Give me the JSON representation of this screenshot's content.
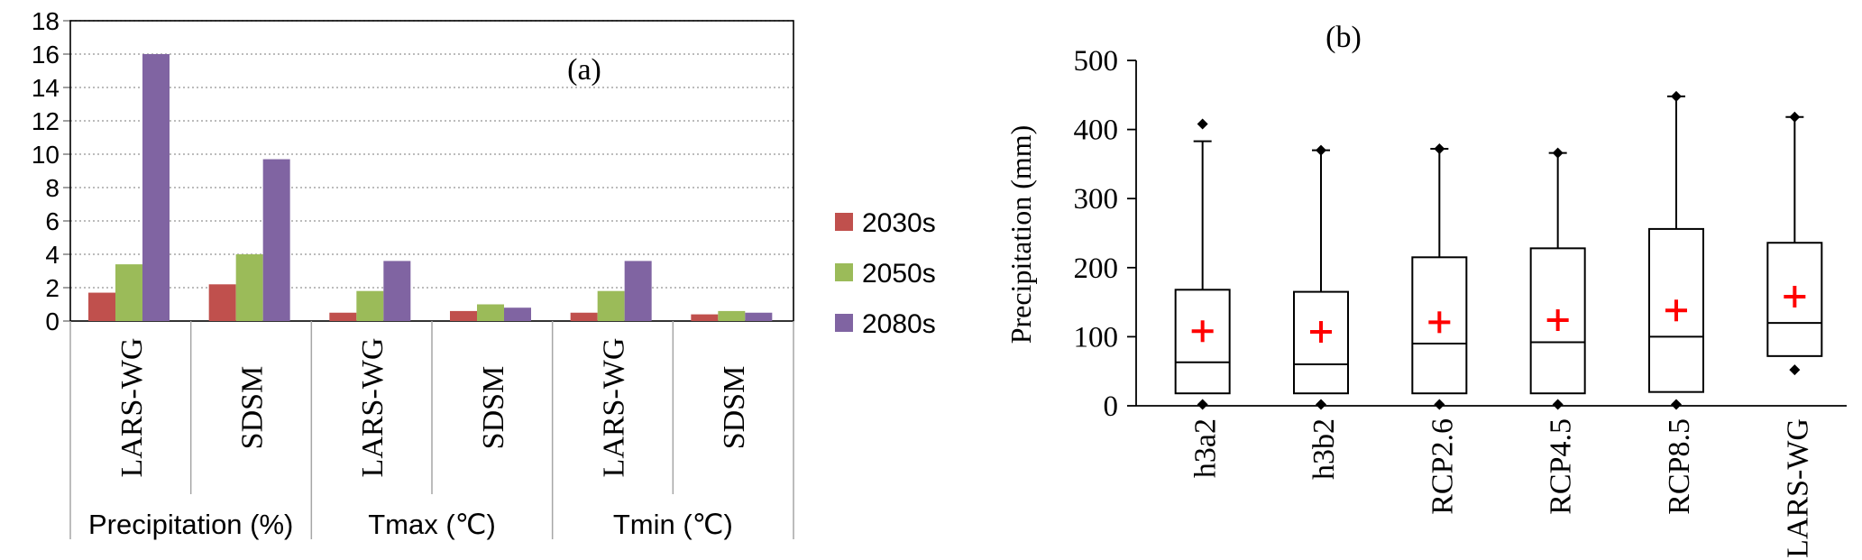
{
  "chart_data": [
    {
      "type": "bar",
      "panel_label": "(a)",
      "ylim": [
        0,
        18
      ],
      "yticks": [
        0,
        2,
        4,
        6,
        8,
        10,
        12,
        14,
        16,
        18
      ],
      "grid": true,
      "legend_position": "right",
      "groups": [
        {
          "label": "Precipitation (%)",
          "categories": [
            "LARS-WG",
            "SDSM"
          ]
        },
        {
          "label": "Tmax (℃)",
          "categories": [
            "LARS-WG",
            "SDSM"
          ]
        },
        {
          "label": "Tmin (℃)",
          "categories": [
            "LARS-WG",
            "SDSM"
          ]
        }
      ],
      "series": [
        {
          "name": "2030s",
          "color": "#c0504d",
          "values": [
            1.7,
            2.2,
            0.5,
            0.6,
            0.5,
            0.4
          ]
        },
        {
          "name": "2050s",
          "color": "#9bbb59",
          "values": [
            3.4,
            4.0,
            1.8,
            1.0,
            1.8,
            0.6
          ]
        },
        {
          "name": "2080s",
          "color": "#8064a2",
          "values": [
            16.0,
            9.7,
            3.6,
            0.8,
            3.6,
            0.5
          ]
        }
      ]
    },
    {
      "type": "box",
      "panel_label": "(b)",
      "ylabel": "Precipitation (mm)",
      "ylim": [
        0,
        500
      ],
      "yticks": [
        0,
        100,
        200,
        300,
        400,
        500
      ],
      "mean_marker_color": "#ff0000",
      "boxes": [
        {
          "label": "h3a2",
          "whisker_low": 18,
          "q1": 18,
          "median": 63,
          "q3": 168,
          "whisker_high": 383,
          "mean": 108,
          "outliers": [
            408,
            2
          ]
        },
        {
          "label": "h3b2",
          "whisker_low": 18,
          "q1": 18,
          "median": 60,
          "q3": 165,
          "whisker_high": 370,
          "mean": 107,
          "outliers": [
            370,
            2
          ]
        },
        {
          "label": "RCP2.6",
          "whisker_low": 18,
          "q1": 18,
          "median": 90,
          "q3": 215,
          "whisker_high": 372,
          "mean": 121,
          "outliers": [
            372,
            2
          ]
        },
        {
          "label": "RCP4.5",
          "whisker_low": 18,
          "q1": 18,
          "median": 92,
          "q3": 228,
          "whisker_high": 366,
          "mean": 124,
          "outliers": [
            366,
            2
          ]
        },
        {
          "label": "RCP8.5",
          "whisker_low": 20,
          "q1": 20,
          "median": 100,
          "q3": 256,
          "whisker_high": 448,
          "mean": 138,
          "outliers": [
            448,
            2
          ]
        },
        {
          "label": "LARS-WG",
          "whisker_low": 72,
          "q1": 72,
          "median": 120,
          "q3": 236,
          "whisker_high": 418,
          "mean": 158,
          "outliers": [
            418,
            52
          ]
        }
      ]
    }
  ]
}
